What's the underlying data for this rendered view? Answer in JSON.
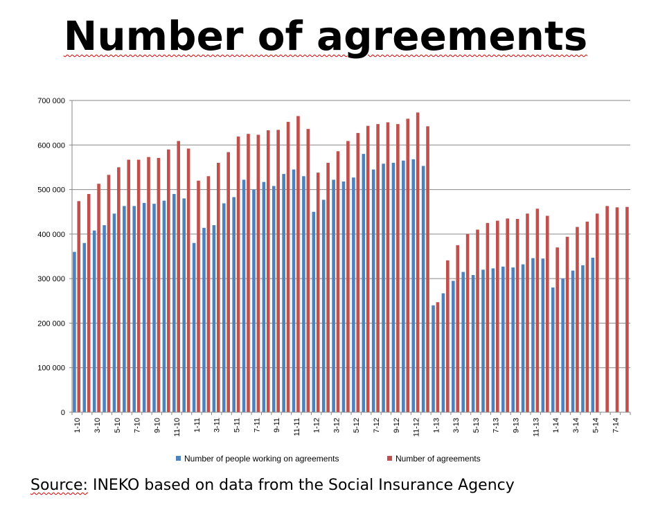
{
  "source": {
    "prefix": "Source:",
    "rest": "INEKO based on data from the Social Insurance Agency"
  },
  "chart_data": {
    "type": "bar",
    "title": "Number of agreements",
    "xlabel": "",
    "ylabel": "",
    "ylim": [
      0,
      700000
    ],
    "yticks": [
      0,
      100000,
      200000,
      300000,
      400000,
      500000,
      600000,
      700000
    ],
    "ytick_labels": [
      "0",
      "100 000",
      "200 000",
      "300 000",
      "400 000",
      "500 000",
      "600 000",
      "700 000"
    ],
    "grid": true,
    "legend_position": "bottom",
    "categories": [
      "1-10",
      "2-10",
      "3-10",
      "4-10",
      "5-10",
      "6-10",
      "7-10",
      "8-10",
      "9-10",
      "10-10",
      "11-10",
      "12-10",
      "1-11",
      "2-11",
      "3-11",
      "4-11",
      "5-11",
      "6-11",
      "7-11",
      "8-11",
      "9-11",
      "10-11",
      "11-11",
      "12-11",
      "1-12",
      "2-12",
      "3-12",
      "4-12",
      "5-12",
      "6-12",
      "7-12",
      "8-12",
      "9-12",
      "10-12",
      "11-12",
      "12-12",
      "1-13",
      "2-13",
      "3-13",
      "4-13",
      "5-13",
      "6-13",
      "7-13",
      "8-13",
      "9-13",
      "10-13",
      "11-13",
      "12-13",
      "1-14",
      "2-14",
      "3-14",
      "4-14",
      "5-14",
      "6-14",
      "7-14",
      "8-14"
    ],
    "shown_tick_labels": [
      "1-10",
      "3-10",
      "5-10",
      "7-10",
      "9-10",
      "11-10",
      "1-11",
      "3-11",
      "5-11",
      "7-11",
      "9-11",
      "11-11",
      "1-12",
      "3-12",
      "5-12",
      "7-12",
      "9-12",
      "11-12",
      "1-13",
      "3-13",
      "5-13",
      "7-13",
      "9-13",
      "11-13",
      "1-14",
      "3-14",
      "5-14",
      "7-14"
    ],
    "series": [
      {
        "name": "Number of people working on agreements",
        "color": "#4f81bd",
        "values": [
          360000,
          380000,
          408000,
          420000,
          446000,
          463000,
          463000,
          470000,
          468000,
          475000,
          490000,
          480000,
          380000,
          414000,
          420000,
          469000,
          483000,
          522000,
          500000,
          517000,
          508000,
          535000,
          545000,
          530000,
          450000,
          477000,
          522000,
          518000,
          527000,
          580000,
          545000,
          558000,
          560000,
          565000,
          568000,
          553000,
          240000,
          267000,
          295000,
          315000,
          308000,
          320000,
          323000,
          327000,
          325000,
          332000,
          346000,
          345000,
          280000,
          300000,
          318000,
          330000,
          347000,
          null,
          null,
          null
        ]
      },
      {
        "name": "Number of agreements",
        "color": "#c0504d",
        "values": [
          474000,
          490000,
          513000,
          533000,
          550000,
          567000,
          567000,
          573000,
          571000,
          590000,
          609000,
          592000,
          520000,
          530000,
          560000,
          584000,
          619000,
          625000,
          623000,
          633000,
          634000,
          652000,
          665000,
          636000,
          538000,
          560000,
          586000,
          609000,
          627000,
          643000,
          647000,
          651000,
          647000,
          659000,
          673000,
          642000,
          247000,
          341000,
          375000,
          400000,
          410000,
          425000,
          430000,
          435000,
          434000,
          446000,
          457000,
          441000,
          370000,
          394000,
          416000,
          428000,
          446000,
          463000,
          460000,
          461000
        ]
      }
    ]
  }
}
